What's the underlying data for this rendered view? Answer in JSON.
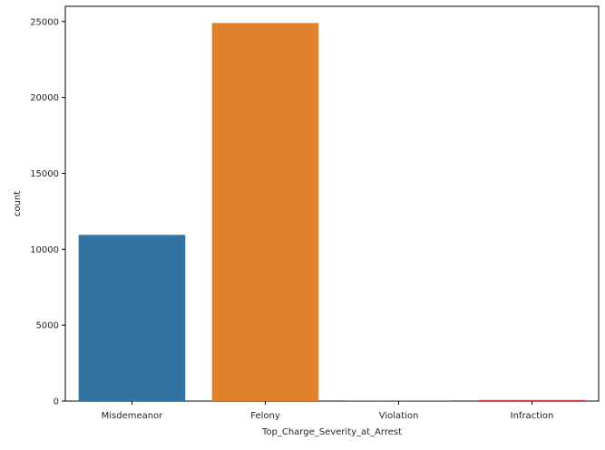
{
  "chart_data": {
    "type": "bar",
    "title": "",
    "xlabel": "Top_Charge_Severity_at_Arrest",
    "ylabel": "count",
    "categories": [
      "Misdemeanor",
      "Felony",
      "Violation",
      "Infraction"
    ],
    "values": [
      10950,
      24900,
      10,
      70
    ],
    "colors": [
      "#3274a1",
      "#e1812c",
      "#3a923a",
      "#c03d3e"
    ],
    "ylim": [
      0,
      26000
    ],
    "yticks": [
      0,
      5000,
      10000,
      15000,
      20000,
      25000
    ],
    "grid": false,
    "legend": "none"
  }
}
